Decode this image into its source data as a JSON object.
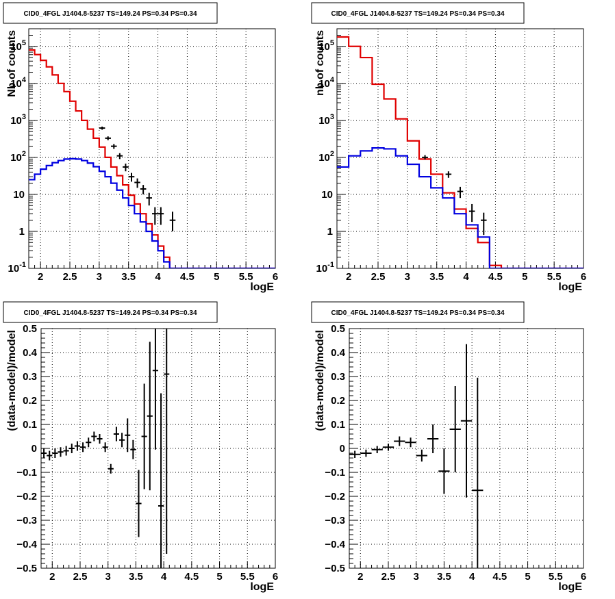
{
  "chart_data": [
    {
      "type": "line",
      "title": "CID0_4FGL J1404.8-5237 TS=149.24 PS=0.34 PS=0.34",
      "xlabel": "logE",
      "ylabel": "Nb of counts",
      "xlim": [
        1.8,
        6.0
      ],
      "ylim": [
        0.1,
        300000
      ],
      "yscale": "log",
      "grid": true,
      "xticks": [
        "2",
        "2.5",
        "3",
        "3.5",
        "4",
        "4.5",
        "5",
        "5.5",
        "6"
      ],
      "yticks": [
        "10^-1",
        "1",
        "10",
        "10^2",
        "10^3",
        "10^4",
        "10^5"
      ],
      "bin_edges": [
        1.8,
        1.9,
        2.0,
        2.1,
        2.2,
        2.3,
        2.4,
        2.5,
        2.6,
        2.7,
        2.8,
        2.9,
        3.0,
        3.1,
        3.2,
        3.3,
        3.4,
        3.5,
        3.6,
        3.7,
        3.8,
        3.9,
        4.0,
        4.1,
        4.2,
        4.3,
        4.4,
        4.5,
        4.6,
        4.7,
        4.8,
        4.9,
        5.0,
        5.1,
        5.2,
        5.3,
        5.4,
        5.5,
        5.6,
        5.7,
        5.8,
        5.9,
        6.0
      ],
      "series": [
        {
          "color": "#e00000",
          "style": "step",
          "values": [
            80000,
            60000,
            42000,
            28000,
            17000,
            10000,
            6000,
            3300,
            1800,
            1000,
            580,
            330,
            190,
            100,
            55,
            32,
            18,
            9.5,
            5.5,
            3.0,
            1.6,
            0.8,
            0.4,
            0.2,
            0.1,
            0.1,
            0.1,
            0.1,
            0.1,
            0.1,
            0.1,
            0.1,
            0.1,
            0.1,
            0.1,
            0.1,
            0.1,
            0.1,
            0.1,
            0.1,
            0.1,
            0.1
          ]
        },
        {
          "color": "#0000e0",
          "style": "step",
          "values": [
            25,
            35,
            48,
            60,
            72,
            82,
            90,
            92,
            90,
            82,
            70,
            56,
            42,
            30,
            20,
            13,
            8,
            5,
            3,
            1.8,
            1.0,
            0.55,
            0.3,
            0.15,
            0.1,
            0.1,
            0.1,
            0.1,
            0.1,
            0.1,
            0.1,
            0.1,
            0.1,
            0.1,
            0.1,
            0.1,
            0.1,
            0.1,
            0.1,
            0.1,
            0.1,
            0.1
          ]
        },
        {
          "color": "#000000",
          "style": "points",
          "points": [
            {
              "x": 3.05,
              "y": 620,
              "ylo": 560,
              "yhi": 680
            },
            {
              "x": 3.15,
              "y": 330,
              "ylo": 290,
              "yhi": 370
            },
            {
              "x": 3.25,
              "y": 200,
              "ylo": 170,
              "yhi": 230
            },
            {
              "x": 3.35,
              "y": 110,
              "ylo": 90,
              "yhi": 130
            },
            {
              "x": 3.45,
              "y": 55,
              "ylo": 42,
              "yhi": 68
            },
            {
              "x": 3.55,
              "y": 30,
              "ylo": 22,
              "yhi": 38
            },
            {
              "x": 3.65,
              "y": 21,
              "ylo": 15,
              "yhi": 27
            },
            {
              "x": 3.75,
              "y": 14,
              "ylo": 10,
              "yhi": 18
            },
            {
              "x": 3.85,
              "y": 8,
              "ylo": 5,
              "yhi": 11
            },
            {
              "x": 3.95,
              "y": 3,
              "ylo": 1.5,
              "yhi": 4.5
            },
            {
              "x": 4.05,
              "y": 3,
              "ylo": 1.5,
              "yhi": 4.5
            },
            {
              "x": 4.25,
              "y": 2,
              "ylo": 1,
              "yhi": 3.4
            }
          ]
        }
      ]
    },
    {
      "type": "line",
      "title": "CID0_4FGL J1404.8-5237 TS=149.24 PS=0.34 PS=0.34",
      "xlabel": "logE",
      "ylabel": "nb of counts",
      "xlim": [
        1.8,
        6.0
      ],
      "ylim": [
        0.1,
        300000
      ],
      "yscale": "log",
      "grid": true,
      "xticks": [
        "2",
        "2.5",
        "3",
        "3.5",
        "4",
        "4.5",
        "5",
        "5.5",
        "6"
      ],
      "yticks": [
        "10^-1",
        "1",
        "10",
        "10^2",
        "10^3",
        "10^4",
        "10^5"
      ],
      "bin_edges": [
        1.8,
        2.0,
        2.2,
        2.4,
        2.6,
        2.8,
        3.0,
        3.2,
        3.4,
        3.6,
        3.8,
        4.0,
        4.2,
        4.4,
        4.6,
        4.8,
        5.0,
        5.2,
        5.4,
        5.6,
        5.8,
        6.0
      ],
      "series": [
        {
          "color": "#e00000",
          "style": "step",
          "values": [
            180000,
            100000,
            50000,
            9500,
            3800,
            1100,
            280,
            90,
            35,
            11,
            4,
            1.2,
            0.5,
            0.12,
            0.1,
            0.1,
            0.1,
            0.1,
            0.1,
            0.1,
            0.1
          ]
        },
        {
          "color": "#0000e0",
          "style": "step",
          "values": [
            55,
            110,
            150,
            180,
            170,
            110,
            65,
            30,
            15,
            8,
            3,
            1.5,
            0.7,
            0.1,
            0.1,
            0.1,
            0.1,
            0.1,
            0.1,
            0.1,
            0.1
          ]
        },
        {
          "color": "#000000",
          "style": "points",
          "points": [
            {
              "x": 3.3,
              "y": 100,
              "ylo": 88,
              "yhi": 115
            },
            {
              "x": 3.7,
              "y": 35,
              "ylo": 28,
              "yhi": 42
            },
            {
              "x": 3.9,
              "y": 12,
              "ylo": 8,
              "yhi": 16
            },
            {
              "x": 4.1,
              "y": 3.5,
              "ylo": 1.8,
              "yhi": 5.5
            },
            {
              "x": 4.3,
              "y": 2,
              "ylo": 0.8,
              "yhi": 3.2
            }
          ]
        }
      ]
    },
    {
      "type": "scatter",
      "title": "CID0_4FGL J1404.8-5237 TS=149.24 PS=0.34 PS=0.34",
      "xlabel": "logE",
      "ylabel": "(data-model)/model",
      "xlim": [
        1.8,
        6.0
      ],
      "ylim": [
        -0.5,
        0.5
      ],
      "grid": true,
      "xticks": [
        "2",
        "2.5",
        "3",
        "3.5",
        "4",
        "4.5",
        "5",
        "5.5",
        "6"
      ],
      "yticks": [
        "−0.5",
        "−0.4",
        "−0.3",
        "−0.2",
        "−0.1",
        "0",
        "0.1",
        "0.2",
        "0.3",
        "0.4",
        "0.5"
      ],
      "series": [
        {
          "color": "#000000",
          "points": [
            {
              "x": 1.85,
              "y": -0.02,
              "xerr": 0.05,
              "yerr": 0.02
            },
            {
              "x": 1.95,
              "y": -0.03,
              "xerr": 0.05,
              "yerr": 0.02
            },
            {
              "x": 2.05,
              "y": -0.02,
              "xerr": 0.05,
              "yerr": 0.02
            },
            {
              "x": 2.15,
              "y": -0.015,
              "xerr": 0.05,
              "yerr": 0.02
            },
            {
              "x": 2.25,
              "y": -0.01,
              "xerr": 0.05,
              "yerr": 0.02
            },
            {
              "x": 2.35,
              "y": 0.0,
              "xerr": 0.05,
              "yerr": 0.02
            },
            {
              "x": 2.45,
              "y": 0.01,
              "xerr": 0.05,
              "yerr": 0.02
            },
            {
              "x": 2.55,
              "y": 0.005,
              "xerr": 0.05,
              "yerr": 0.02
            },
            {
              "x": 2.65,
              "y": 0.025,
              "xerr": 0.05,
              "yerr": 0.02
            },
            {
              "x": 2.75,
              "y": 0.05,
              "xerr": 0.05,
              "yerr": 0.02
            },
            {
              "x": 2.85,
              "y": 0.04,
              "xerr": 0.05,
              "yerr": 0.02
            },
            {
              "x": 2.95,
              "y": 0.005,
              "xerr": 0.05,
              "yerr": 0.02
            },
            {
              "x": 3.05,
              "y": -0.085,
              "xerr": 0.05,
              "yerr": 0.02
            },
            {
              "x": 3.15,
              "y": 0.06,
              "xerr": 0.05,
              "yerr": 0.03
            },
            {
              "x": 3.25,
              "y": 0.035,
              "xerr": 0.05,
              "yerr": 0.03
            },
            {
              "x": 3.35,
              "y": 0.055,
              "xerr": 0.05,
              "yerr": 0.07
            },
            {
              "x": 3.45,
              "y": -0.005,
              "xerr": 0.05,
              "yerr": 0.04
            },
            {
              "x": 3.55,
              "y": -0.23,
              "xerr": 0.05,
              "yerr": 0.14
            },
            {
              "x": 3.65,
              "y": 0.05,
              "xerr": 0.05,
              "yerr": 0.22
            },
            {
              "x": 3.75,
              "y": 0.135,
              "xerr": 0.05,
              "yerr": 0.31
            },
            {
              "x": 3.85,
              "y": 0.325,
              "xerr": 0.05,
              "yerr": 0.33
            },
            {
              "x": 3.95,
              "y": -0.24,
              "xerr": 0.05,
              "yerr": 0.47
            },
            {
              "x": 4.05,
              "y": 0.31,
              "xerr": 0.05,
              "yerr": 0.75
            }
          ]
        }
      ]
    },
    {
      "type": "scatter",
      "title": "CID0_4FGL J1404.8-5237 TS=149.24 PS=0.34 PS=0.34",
      "xlabel": "logE",
      "ylabel": "(data-model)/model",
      "xlim": [
        1.8,
        6.0
      ],
      "ylim": [
        -0.5,
        0.5
      ],
      "grid": true,
      "xticks": [
        "2",
        "2.5",
        "3",
        "3.5",
        "4",
        "4.5",
        "5",
        "5.5",
        "6"
      ],
      "yticks": [
        "−0.5",
        "−0.4",
        "−0.3",
        "−0.2",
        "−0.1",
        "0",
        "0.1",
        "0.2",
        "0.3",
        "0.4",
        "0.5"
      ],
      "series": [
        {
          "color": "#000000",
          "points": [
            {
              "x": 1.9,
              "y": -0.025,
              "xerr": 0.1,
              "yerr": 0.015
            },
            {
              "x": 2.1,
              "y": -0.02,
              "xerr": 0.1,
              "yerr": 0.015
            },
            {
              "x": 2.3,
              "y": -0.005,
              "xerr": 0.1,
              "yerr": 0.015
            },
            {
              "x": 2.5,
              "y": 0.005,
              "xerr": 0.1,
              "yerr": 0.015
            },
            {
              "x": 2.7,
              "y": 0.03,
              "xerr": 0.1,
              "yerr": 0.02
            },
            {
              "x": 2.9,
              "y": 0.025,
              "xerr": 0.1,
              "yerr": 0.02
            },
            {
              "x": 3.1,
              "y": -0.03,
              "xerr": 0.1,
              "yerr": 0.025
            },
            {
              "x": 3.3,
              "y": 0.04,
              "xerr": 0.1,
              "yerr": 0.06
            },
            {
              "x": 3.5,
              "y": -0.095,
              "xerr": 0.1,
              "yerr": 0.095
            },
            {
              "x": 3.7,
              "y": 0.08,
              "xerr": 0.1,
              "yerr": 0.18
            },
            {
              "x": 3.9,
              "y": 0.115,
              "xerr": 0.1,
              "yerr": 0.32
            },
            {
              "x": 4.1,
              "y": -0.175,
              "xerr": 0.1,
              "yerr": 0.47
            }
          ]
        }
      ]
    }
  ]
}
